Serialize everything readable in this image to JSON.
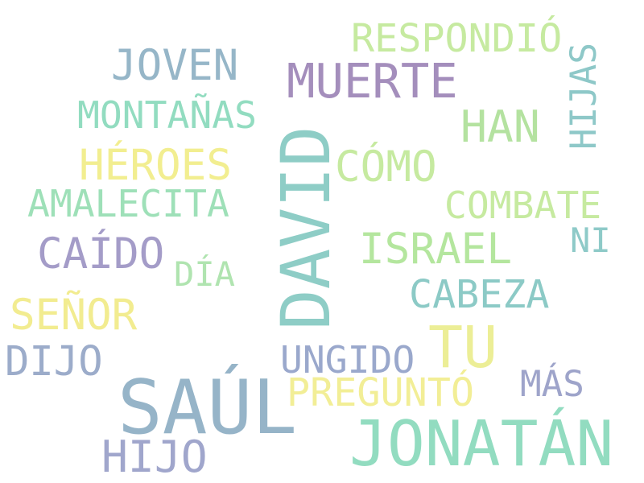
{
  "words": [
    {
      "text": "DAVID",
      "color": "#8ecdc6"
    },
    {
      "text": "SAÚL",
      "color": "#96b4c8"
    },
    {
      "text": "JONATÁN",
      "color": "#92dcc0"
    },
    {
      "text": "TU",
      "color": "#ecee96"
    },
    {
      "text": "MUERTE",
      "color": "#a48ebc"
    },
    {
      "text": "HIJO",
      "color": "#a0a6cc"
    },
    {
      "text": "HAN",
      "color": "#b4e2a0"
    },
    {
      "text": "SEÑOR",
      "color": "#f2ec90"
    },
    {
      "text": "CAÍDO",
      "color": "#a49cc8"
    },
    {
      "text": "ISRAEL",
      "color": "#b4e69e"
    },
    {
      "text": "JOVEN",
      "color": "#96b6c8"
    },
    {
      "text": "HÉROES",
      "color": "#f2ee90"
    },
    {
      "text": "DIJO",
      "color": "#9cacca"
    },
    {
      "text": "CÓMO",
      "color": "#c6eaa0"
    },
    {
      "text": "HIJAS",
      "color": "#8ec8c8"
    },
    {
      "text": "RESPONDIÓ",
      "color": "#c6eaa0"
    },
    {
      "text": "PREGUNTÓ",
      "color": "#f2ee96"
    },
    {
      "text": "CABEZA",
      "color": "#8ccac6"
    },
    {
      "text": "UNGIDO",
      "color": "#9aa8cc"
    },
    {
      "text": "MÁS",
      "color": "#9ea4ca"
    },
    {
      "text": "COMBATE",
      "color": "#c6eaa0"
    },
    {
      "text": "AMALECITA",
      "color": "#9ee0b8"
    },
    {
      "text": "MONTAÑAS",
      "color": "#92dcc0"
    },
    {
      "text": "NI",
      "color": "#8ecac8"
    },
    {
      "text": "DÍA",
      "color": "#b0e4b0"
    }
  ]
}
